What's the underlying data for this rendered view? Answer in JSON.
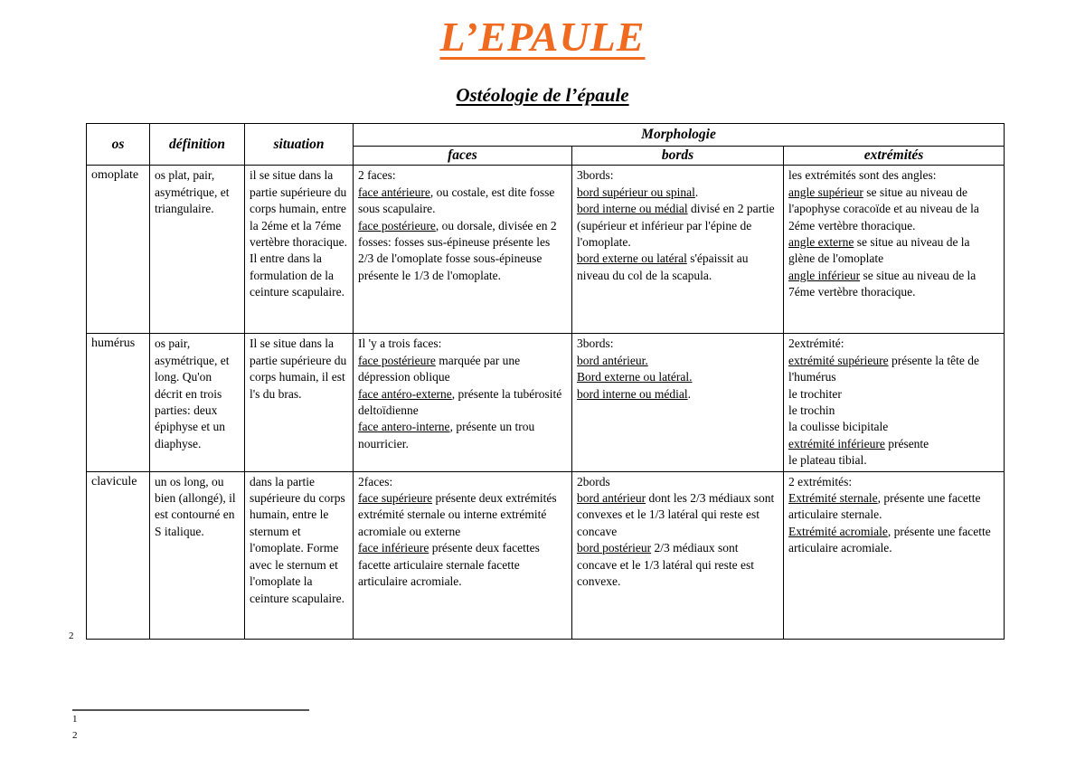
{
  "page": {
    "title": "L’EPAULE",
    "subtitle": "Ostéologie de l’épaule",
    "title_color": "#F06A20",
    "footnote_marker": "2",
    "footnote_items": [
      "1",
      "2"
    ]
  },
  "table": {
    "headers": {
      "os": "os",
      "definition": "définition",
      "situation": "situation",
      "morphologie": "Morphologie",
      "faces": "faces",
      "bords": "bords",
      "extremites": "extrémités"
    },
    "rows": [
      {
        "os": "omoplate",
        "definition": [
          [
            {
              "t": "os plat, pair, asymétrique, et triangulaire."
            }
          ]
        ],
        "situation": [
          [
            {
              "t": "il se situe dans la partie supérieure du corps humain, entre la 2éme et la 7éme vertèbre thoracique. Il entre dans la formulation de la ceinture scapulaire."
            }
          ]
        ],
        "faces": [
          [
            {
              "t": "2 faces:"
            }
          ],
          [
            {
              "t": "face antérieure",
              "u": true
            },
            {
              "t": ", ou costale, est dite fosse sous scapulaire."
            }
          ],
          [
            {
              "t": "face postérieure",
              "u": true
            },
            {
              "t": ", ou dorsale, divisée en 2 fosses: fosses sus-épineuse présente les 2/3 de l'omoplate fosse sous-épineuse présente le 1/3 de l'omoplate."
            }
          ]
        ],
        "bords": [
          [
            {
              "t": "3bords:"
            }
          ],
          [
            {
              "t": "bord supérieur ou spinal",
              "u": true
            },
            {
              "t": "."
            }
          ],
          [
            {
              "t": "bord interne ou médial",
              "u": true
            },
            {
              "t": " divisé en 2 partie (supérieur et inférieur par l'épine de l'omoplate."
            }
          ],
          [
            {
              "t": "bord externe ou latéral",
              "u": true
            },
            {
              "t": " s'épaissit au niveau du col de la scapula."
            }
          ]
        ],
        "extremites": [
          [
            {
              "t": "les extrémités sont des angles:"
            }
          ],
          [
            {
              "t": "angle supérieur",
              "u": true
            },
            {
              "t": " se situe au niveau de l'apophyse coracoïde et au niveau de la 2éme vertèbre thoracique."
            }
          ],
          [
            {
              "t": "angle externe",
              "u": true
            },
            {
              "t": " se situe au niveau de la glène de l'omoplate"
            }
          ],
          [
            {
              "t": "angle inférieur",
              "u": true
            },
            {
              "t": " se situe au niveau de la 7éme vertèbre thoracique."
            }
          ]
        ]
      },
      {
        "os": "humérus",
        "definition": [
          [
            {
              "t": "os pair, asymétrique, et long. Qu'on décrit en trois parties: deux épiphyse et un diaphyse."
            }
          ]
        ],
        "situation": [
          [
            {
              "t": "Il se situe dans la partie supérieure du corps humain, il est l's du bras."
            }
          ]
        ],
        "faces": [
          [
            {
              "t": "Il 'y a trois faces:"
            }
          ],
          [
            {
              "t": "face postérieure",
              "u": true
            },
            {
              "t": " marquée par une dépression oblique"
            }
          ],
          [
            {
              "t": "face antéro-externe",
              "u": true
            },
            {
              "t": ", présente la tubérosité deltoïdienne"
            }
          ],
          [
            {
              "t": "face antero-interne",
              "u": true
            },
            {
              "t": ", présente un trou nourricier."
            }
          ]
        ],
        "bords": [
          [
            {
              "t": "3bords:"
            }
          ],
          [
            {
              "t": "bord antérieur. ",
              "u": true
            }
          ],
          [
            {
              "t": "Bord externe ou latéral. ",
              "u": true
            }
          ],
          [
            {
              "t": "bord interne ou médial",
              "u": true
            },
            {
              "t": "."
            }
          ]
        ],
        "extremites": [
          [
            {
              "t": "2extrémité:"
            }
          ],
          [
            {
              "t": "extrémité supérieure",
              "u": true
            },
            {
              "t": " présente la tête de l'humérus"
            }
          ],
          [
            {
              "t": "le trochiter"
            }
          ],
          [
            {
              "t": "le trochin"
            }
          ],
          [
            {
              "t": "la coulisse bicipitale"
            }
          ],
          [
            {
              "t": "extrémité inférieure",
              "u": true
            },
            {
              "t": " présente"
            }
          ],
          [
            {
              "t": "le plateau tibial."
            }
          ]
        ]
      },
      {
        "os": "clavicule",
        "definition": [
          [
            {
              "t": "un os long, ou bien (allongé), il est contourné en S italique."
            }
          ]
        ],
        "situation": [
          [
            {
              "t": "dans la partie supérieure du corps humain, entre le sternum et l'omoplate. Forme avec le sternum et l'omoplate la ceinture scapulaire."
            }
          ]
        ],
        "faces": [
          [
            {
              "t": "2faces:"
            }
          ],
          [
            {
              "t": "face supérieure",
              "u": true
            },
            {
              "t": " présente deux extrémités extrémité sternale ou interne extrémité acromiale ou externe"
            }
          ],
          [
            {
              "t": "face inférieure",
              "u": true
            },
            {
              "t": " présente deux facettes"
            }
          ],
          [
            {
              "t": "facette articulaire sternale facette articulaire acromiale."
            }
          ]
        ],
        "bords": [
          [
            {
              "t": "2bords"
            }
          ],
          [
            {
              "t": "bord antérieur",
              "u": true
            },
            {
              "t": " dont les 2/3 médiaux sont convexes et le 1/3 latéral qui reste est concave"
            }
          ],
          [
            {
              "t": "bord postérieur",
              "u": true
            },
            {
              "t": " 2/3 médiaux sont concave et le 1/3 latéral qui reste est convexe."
            }
          ]
        ],
        "extremites": [
          [
            {
              "t": "2 extrémités:"
            }
          ],
          [
            {
              "t": "Extrémité sternale",
              "u": true
            },
            {
              "t": ", présente une facette articulaire sternale."
            }
          ],
          [
            {
              "t": "Extrémité acromiale",
              "u": true
            },
            {
              "t": ", présente une facette articulaire acromiale."
            }
          ]
        ]
      }
    ]
  }
}
